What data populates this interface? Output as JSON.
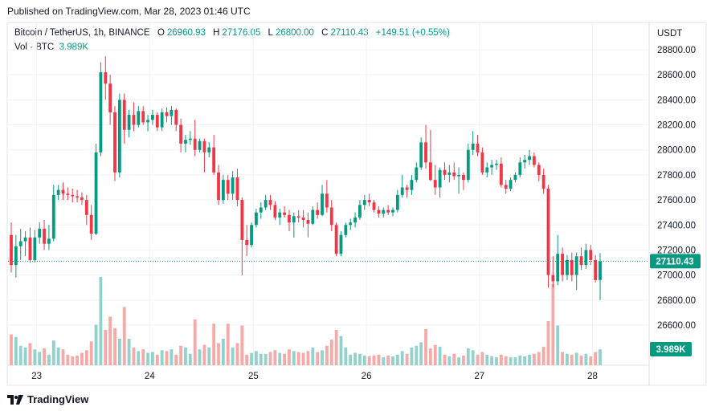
{
  "header": {
    "published": "Published on TradingView.com, Mar 28, 2023 01:46 UTC"
  },
  "legend": {
    "symbol": "Bitcoin / TetherUS, 1h, BINANCE",
    "o_label": "O",
    "o_value": "26960.93",
    "h_label": "H",
    "h_value": "27176.05",
    "l_label": "L",
    "l_value": "26800.00",
    "c_label": "C",
    "c_value": "27110.43",
    "change": "+149.51 (+0.55%)",
    "vol_label": "Vol · BTC",
    "vol_value": "3.989K"
  },
  "footer": {
    "brand": "TradingView"
  },
  "colors": {
    "up": "#089981",
    "down": "#f23645",
    "up_vol": "#92d2cc",
    "down_vol": "#f7a9a7",
    "grid": "#f0f3fa"
  },
  "chart_data": {
    "type": "candlestick",
    "symbol": "BTCUSDT",
    "interval": "1h",
    "ylabel": "USDT",
    "ylim": [
      26400,
      28900
    ],
    "y_ticks": [
      26600,
      26800,
      27000,
      27200,
      27400,
      27600,
      27800,
      28000,
      28200,
      28400,
      28600,
      28800
    ],
    "y_tick_labels": [
      "26600.00",
      "26800.00",
      "27000.00",
      "27200.00",
      "27400.00",
      "27600.00",
      "27800.00",
      "28000.00",
      "28200.00",
      "28400.00",
      "28600.00",
      "28800.00"
    ],
    "x_ticks": [
      "23",
      "24",
      "25",
      "26",
      "27",
      "28"
    ],
    "x_tick_bars": [
      3,
      27,
      49,
      73,
      97,
      121
    ],
    "last_price": 27110.43,
    "last_price_label": "27110.43",
    "volume_label": "3.989K",
    "candles": [
      {
        "o": 27320,
        "h": 27420,
        "l": 27020,
        "c": 27080,
        "v": 0.35
      },
      {
        "o": 27080,
        "h": 27320,
        "l": 26980,
        "c": 27230,
        "v": 0.32
      },
      {
        "o": 27230,
        "h": 27370,
        "l": 27120,
        "c": 27270,
        "v": 0.22
      },
      {
        "o": 27270,
        "h": 27350,
        "l": 27150,
        "c": 27300,
        "v": 0.2
      },
      {
        "o": 27300,
        "h": 27380,
        "l": 27100,
        "c": 27120,
        "v": 0.25
      },
      {
        "o": 27120,
        "h": 27360,
        "l": 27100,
        "c": 27300,
        "v": 0.18
      },
      {
        "o": 27300,
        "h": 27420,
        "l": 27250,
        "c": 27370,
        "v": 0.15
      },
      {
        "o": 27370,
        "h": 27440,
        "l": 27200,
        "c": 27250,
        "v": 0.19
      },
      {
        "o": 27250,
        "h": 27400,
        "l": 27200,
        "c": 27290,
        "v": 0.12
      },
      {
        "o": 27290,
        "h": 27720,
        "l": 27270,
        "c": 27640,
        "v": 0.28
      },
      {
        "o": 27640,
        "h": 27720,
        "l": 27600,
        "c": 27680,
        "v": 0.2
      },
      {
        "o": 27680,
        "h": 27740,
        "l": 27600,
        "c": 27650,
        "v": 0.18
      },
      {
        "o": 27650,
        "h": 27700,
        "l": 27600,
        "c": 27640,
        "v": 0.12
      },
      {
        "o": 27640,
        "h": 27690,
        "l": 27580,
        "c": 27630,
        "v": 0.1
      },
      {
        "o": 27630,
        "h": 27680,
        "l": 27580,
        "c": 27620,
        "v": 0.11
      },
      {
        "o": 27620,
        "h": 27660,
        "l": 27560,
        "c": 27600,
        "v": 0.14
      },
      {
        "o": 27600,
        "h": 27640,
        "l": 27400,
        "c": 27480,
        "v": 0.17
      },
      {
        "o": 27480,
        "h": 27560,
        "l": 27280,
        "c": 27330,
        "v": 0.27
      },
      {
        "o": 27330,
        "h": 28050,
        "l": 27320,
        "c": 27980,
        "v": 0.46
      },
      {
        "o": 27980,
        "h": 28700,
        "l": 27950,
        "c": 28620,
        "v": 1.0
      },
      {
        "o": 28620,
        "h": 28750,
        "l": 28400,
        "c": 28530,
        "v": 0.4
      },
      {
        "o": 28530,
        "h": 28600,
        "l": 28200,
        "c": 28300,
        "v": 0.55
      },
      {
        "o": 28300,
        "h": 28350,
        "l": 27750,
        "c": 27820,
        "v": 0.42
      },
      {
        "o": 27820,
        "h": 28450,
        "l": 27780,
        "c": 28400,
        "v": 0.3
      },
      {
        "o": 28400,
        "h": 28450,
        "l": 28050,
        "c": 28160,
        "v": 0.66
      },
      {
        "o": 28160,
        "h": 28320,
        "l": 28100,
        "c": 28280,
        "v": 0.3
      },
      {
        "o": 28280,
        "h": 28380,
        "l": 28150,
        "c": 28200,
        "v": 0.2
      },
      {
        "o": 28200,
        "h": 28350,
        "l": 28180,
        "c": 28310,
        "v": 0.16
      },
      {
        "o": 28310,
        "h": 28350,
        "l": 28200,
        "c": 28220,
        "v": 0.18
      },
      {
        "o": 28220,
        "h": 28280,
        "l": 28150,
        "c": 28240,
        "v": 0.14
      },
      {
        "o": 28240,
        "h": 28320,
        "l": 28200,
        "c": 28280,
        "v": 0.15
      },
      {
        "o": 28280,
        "h": 28300,
        "l": 28150,
        "c": 28180,
        "v": 0.12
      },
      {
        "o": 28180,
        "h": 28330,
        "l": 28150,
        "c": 28300,
        "v": 0.17
      },
      {
        "o": 28300,
        "h": 28340,
        "l": 28220,
        "c": 28270,
        "v": 0.16
      },
      {
        "o": 28270,
        "h": 28350,
        "l": 28200,
        "c": 28320,
        "v": 0.18
      },
      {
        "o": 28320,
        "h": 28330,
        "l": 28150,
        "c": 28200,
        "v": 0.12
      },
      {
        "o": 28200,
        "h": 28250,
        "l": 27980,
        "c": 28050,
        "v": 0.22
      },
      {
        "o": 28050,
        "h": 28120,
        "l": 27980,
        "c": 28080,
        "v": 0.2
      },
      {
        "o": 28080,
        "h": 28150,
        "l": 28040,
        "c": 28090,
        "v": 0.13
      },
      {
        "o": 28090,
        "h": 28240,
        "l": 27950,
        "c": 28000,
        "v": 0.52
      },
      {
        "o": 28000,
        "h": 28090,
        "l": 27980,
        "c": 28070,
        "v": 0.18
      },
      {
        "o": 28070,
        "h": 28090,
        "l": 27820,
        "c": 27980,
        "v": 0.23
      },
      {
        "o": 27980,
        "h": 28060,
        "l": 27940,
        "c": 28020,
        "v": 0.2
      },
      {
        "o": 28020,
        "h": 28120,
        "l": 27800,
        "c": 27820,
        "v": 0.47
      },
      {
        "o": 27820,
        "h": 27880,
        "l": 27560,
        "c": 27600,
        "v": 0.25
      },
      {
        "o": 27600,
        "h": 27800,
        "l": 27570,
        "c": 27760,
        "v": 0.3
      },
      {
        "o": 27760,
        "h": 27800,
        "l": 27600,
        "c": 27650,
        "v": 0.47
      },
      {
        "o": 27650,
        "h": 27830,
        "l": 27600,
        "c": 27780,
        "v": 0.2
      },
      {
        "o": 27780,
        "h": 27850,
        "l": 27550,
        "c": 27600,
        "v": 0.25
      },
      {
        "o": 27600,
        "h": 27620,
        "l": 27000,
        "c": 27280,
        "v": 0.45
      },
      {
        "o": 27280,
        "h": 27400,
        "l": 27150,
        "c": 27240,
        "v": 0.12
      },
      {
        "o": 27240,
        "h": 27420,
        "l": 27220,
        "c": 27400,
        "v": 0.14
      },
      {
        "o": 27400,
        "h": 27530,
        "l": 27380,
        "c": 27500,
        "v": 0.16
      },
      {
        "o": 27500,
        "h": 27580,
        "l": 27450,
        "c": 27540,
        "v": 0.13
      },
      {
        "o": 27540,
        "h": 27640,
        "l": 27520,
        "c": 27600,
        "v": 0.13
      },
      {
        "o": 27600,
        "h": 27640,
        "l": 27520,
        "c": 27560,
        "v": 0.15
      },
      {
        "o": 27560,
        "h": 27590,
        "l": 27440,
        "c": 27460,
        "v": 0.17
      },
      {
        "o": 27460,
        "h": 27530,
        "l": 27400,
        "c": 27500,
        "v": 0.14
      },
      {
        "o": 27500,
        "h": 27550,
        "l": 27460,
        "c": 27480,
        "v": 0.13
      },
      {
        "o": 27480,
        "h": 27520,
        "l": 27350,
        "c": 27420,
        "v": 0.18
      },
      {
        "o": 27420,
        "h": 27500,
        "l": 27300,
        "c": 27470,
        "v": 0.16
      },
      {
        "o": 27470,
        "h": 27520,
        "l": 27420,
        "c": 27460,
        "v": 0.15
      },
      {
        "o": 27460,
        "h": 27520,
        "l": 27380,
        "c": 27440,
        "v": 0.14
      },
      {
        "o": 27440,
        "h": 27500,
        "l": 27300,
        "c": 27410,
        "v": 0.16
      },
      {
        "o": 27410,
        "h": 27550,
        "l": 27400,
        "c": 27520,
        "v": 0.2
      },
      {
        "o": 27520,
        "h": 27580,
        "l": 27450,
        "c": 27480,
        "v": 0.15
      },
      {
        "o": 27480,
        "h": 27720,
        "l": 27470,
        "c": 27650,
        "v": 0.17
      },
      {
        "o": 27650,
        "h": 27760,
        "l": 27500,
        "c": 27540,
        "v": 0.22
      },
      {
        "o": 27540,
        "h": 27600,
        "l": 27350,
        "c": 27400,
        "v": 0.29
      },
      {
        "o": 27400,
        "h": 27420,
        "l": 27150,
        "c": 27170,
        "v": 0.4
      },
      {
        "o": 27170,
        "h": 27350,
        "l": 27150,
        "c": 27320,
        "v": 0.33
      },
      {
        "o": 27320,
        "h": 27420,
        "l": 27300,
        "c": 27400,
        "v": 0.2
      },
      {
        "o": 27400,
        "h": 27450,
        "l": 27360,
        "c": 27420,
        "v": 0.12
      },
      {
        "o": 27420,
        "h": 27500,
        "l": 27380,
        "c": 27460,
        "v": 0.14
      },
      {
        "o": 27460,
        "h": 27600,
        "l": 27440,
        "c": 27560,
        "v": 0.13
      },
      {
        "o": 27560,
        "h": 27640,
        "l": 27520,
        "c": 27600,
        "v": 0.11
      },
      {
        "o": 27600,
        "h": 27650,
        "l": 27550,
        "c": 27580,
        "v": 0.1
      },
      {
        "o": 27580,
        "h": 27600,
        "l": 27500,
        "c": 27520,
        "v": 0.11
      },
      {
        "o": 27520,
        "h": 27550,
        "l": 27460,
        "c": 27490,
        "v": 0.12
      },
      {
        "o": 27490,
        "h": 27540,
        "l": 27460,
        "c": 27520,
        "v": 0.09
      },
      {
        "o": 27520,
        "h": 27560,
        "l": 27480,
        "c": 27500,
        "v": 0.11
      },
      {
        "o": 27500,
        "h": 27540,
        "l": 27470,
        "c": 27520,
        "v": 0.1
      },
      {
        "o": 27520,
        "h": 27680,
        "l": 27500,
        "c": 27640,
        "v": 0.12
      },
      {
        "o": 27640,
        "h": 27800,
        "l": 27620,
        "c": 27700,
        "v": 0.16
      },
      {
        "o": 27700,
        "h": 27720,
        "l": 27620,
        "c": 27680,
        "v": 0.13
      },
      {
        "o": 27680,
        "h": 27800,
        "l": 27640,
        "c": 27760,
        "v": 0.2
      },
      {
        "o": 27760,
        "h": 27900,
        "l": 27740,
        "c": 27860,
        "v": 0.22
      },
      {
        "o": 27860,
        "h": 28100,
        "l": 27840,
        "c": 28060,
        "v": 0.26
      },
      {
        "o": 28060,
        "h": 28200,
        "l": 27850,
        "c": 27900,
        "v": 0.41
      },
      {
        "o": 27900,
        "h": 28160,
        "l": 27750,
        "c": 27760,
        "v": 0.19
      },
      {
        "o": 27760,
        "h": 27880,
        "l": 27640,
        "c": 27700,
        "v": 0.23
      },
      {
        "o": 27700,
        "h": 27860,
        "l": 27620,
        "c": 27840,
        "v": 0.21
      },
      {
        "o": 27840,
        "h": 27900,
        "l": 27760,
        "c": 27800,
        "v": 0.12
      },
      {
        "o": 27800,
        "h": 27880,
        "l": 27740,
        "c": 27820,
        "v": 0.1
      },
      {
        "o": 27820,
        "h": 27900,
        "l": 27760,
        "c": 27790,
        "v": 0.13
      },
      {
        "o": 27790,
        "h": 27860,
        "l": 27650,
        "c": 27800,
        "v": 0.09
      },
      {
        "o": 27800,
        "h": 27820,
        "l": 27680,
        "c": 27760,
        "v": 0.11
      },
      {
        "o": 27760,
        "h": 28050,
        "l": 27740,
        "c": 28000,
        "v": 0.19
      },
      {
        "o": 28000,
        "h": 28150,
        "l": 27960,
        "c": 28050,
        "v": 0.17
      },
      {
        "o": 28050,
        "h": 28120,
        "l": 27950,
        "c": 27980,
        "v": 0.12
      },
      {
        "o": 27980,
        "h": 28020,
        "l": 27800,
        "c": 27820,
        "v": 0.15
      },
      {
        "o": 27820,
        "h": 27900,
        "l": 27780,
        "c": 27860,
        "v": 0.12
      },
      {
        "o": 27860,
        "h": 27920,
        "l": 27800,
        "c": 27880,
        "v": 0.1
      },
      {
        "o": 27880,
        "h": 27920,
        "l": 27840,
        "c": 27890,
        "v": 0.09
      },
      {
        "o": 27890,
        "h": 27940,
        "l": 27700,
        "c": 27720,
        "v": 0.12
      },
      {
        "o": 27720,
        "h": 27760,
        "l": 27650,
        "c": 27690,
        "v": 0.1
      },
      {
        "o": 27690,
        "h": 27780,
        "l": 27670,
        "c": 27760,
        "v": 0.09
      },
      {
        "o": 27760,
        "h": 27820,
        "l": 27740,
        "c": 27800,
        "v": 0.09
      },
      {
        "o": 27800,
        "h": 27940,
        "l": 27780,
        "c": 27900,
        "v": 0.11
      },
      {
        "o": 27900,
        "h": 27960,
        "l": 27850,
        "c": 27920,
        "v": 0.1
      },
      {
        "o": 27920,
        "h": 28000,
        "l": 27880,
        "c": 27950,
        "v": 0.12
      },
      {
        "o": 27950,
        "h": 27980,
        "l": 27860,
        "c": 27880,
        "v": 0.13
      },
      {
        "o": 27880,
        "h": 27900,
        "l": 27750,
        "c": 27800,
        "v": 0.15
      },
      {
        "o": 27800,
        "h": 27850,
        "l": 27650,
        "c": 27690,
        "v": 0.21
      },
      {
        "o": 27690,
        "h": 27720,
        "l": 26900,
        "c": 27000,
        "v": 0.5
      },
      {
        "o": 27000,
        "h": 27150,
        "l": 26900,
        "c": 26950,
        "v": 0.92
      },
      {
        "o": 26950,
        "h": 27320,
        "l": 26920,
        "c": 27170,
        "v": 0.45
      },
      {
        "o": 27170,
        "h": 27220,
        "l": 26950,
        "c": 27000,
        "v": 0.15
      },
      {
        "o": 27000,
        "h": 27160,
        "l": 26960,
        "c": 27120,
        "v": 0.13
      },
      {
        "o": 27120,
        "h": 27180,
        "l": 26950,
        "c": 27000,
        "v": 0.12
      },
      {
        "o": 27000,
        "h": 27180,
        "l": 26880,
        "c": 27150,
        "v": 0.14
      },
      {
        "o": 27150,
        "h": 27220,
        "l": 27040,
        "c": 27080,
        "v": 0.11
      },
      {
        "o": 27080,
        "h": 27250,
        "l": 27050,
        "c": 27200,
        "v": 0.13
      },
      {
        "o": 27200,
        "h": 27240,
        "l": 27080,
        "c": 27120,
        "v": 0.1
      },
      {
        "o": 27120,
        "h": 27160,
        "l": 26940,
        "c": 26960,
        "v": 0.15
      },
      {
        "o": 26960,
        "h": 27176,
        "l": 26800,
        "c": 27110,
        "v": 0.18
      }
    ]
  }
}
